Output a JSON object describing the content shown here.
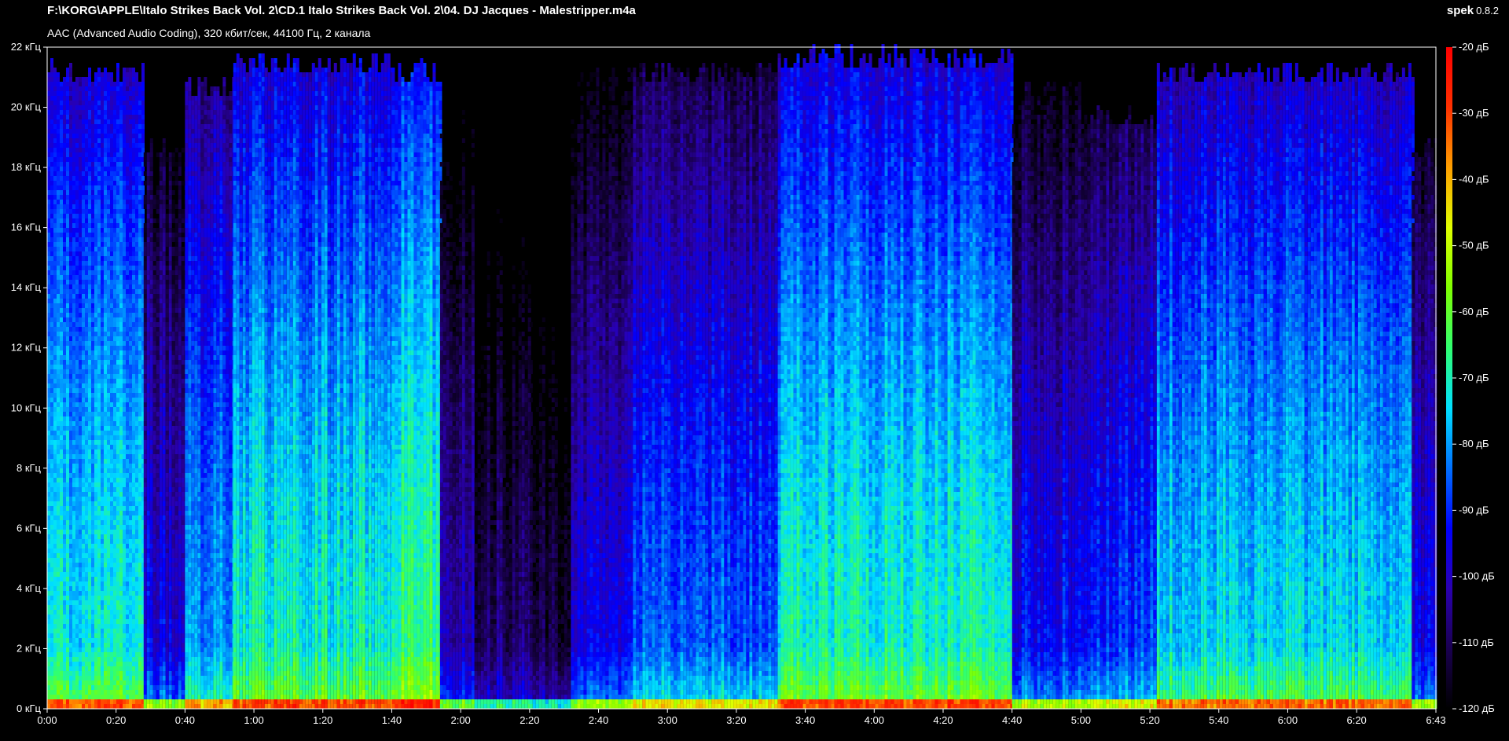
{
  "window": {
    "file_path": "F:\\KORG\\APPLE\\Italo Strikes Back Vol. 2\\CD.1 Italo Strikes Back Vol. 2\\04. DJ Jacques - Malestripper.m4a",
    "stream_info": "AAC (Advanced Audio Coding), 320 кбит/сек, 44100 Гц, 2 канала",
    "app_name": "spek",
    "app_version": "0.8.2"
  },
  "chart_data": {
    "type": "heatmap",
    "title": "",
    "xlabel": "",
    "ylabel": "",
    "x_ticks": [
      "0:00",
      "0:20",
      "0:40",
      "1:00",
      "1:20",
      "1:40",
      "2:00",
      "2:20",
      "2:40",
      "3:00",
      "3:20",
      "3:40",
      "4:00",
      "4:20",
      "4:40",
      "5:00",
      "5:20",
      "5:40",
      "6:00",
      "6:20",
      "6:43"
    ],
    "x_tick_seconds": [
      0,
      20,
      40,
      60,
      80,
      100,
      120,
      140,
      160,
      180,
      200,
      220,
      240,
      260,
      280,
      300,
      320,
      340,
      360,
      380,
      403
    ],
    "xlim_seconds": [
      0,
      403
    ],
    "y_ticks": [
      "0 кГц",
      "2 кГц",
      "4 кГц",
      "6 кГц",
      "8 кГц",
      "10 кГц",
      "12 кГц",
      "14 кГц",
      "16 кГц",
      "18 кГц",
      "20 кГц",
      "22 кГц"
    ],
    "y_tick_khz": [
      0,
      2,
      4,
      6,
      8,
      10,
      12,
      14,
      16,
      18,
      20,
      22
    ],
    "ylim_khz": [
      0,
      22
    ],
    "colorbar": {
      "ticks": [
        "-20 дБ",
        "-30 дБ",
        "-40 дБ",
        "-50 дБ",
        "-60 дБ",
        "-70 дБ",
        "-80 дБ",
        "-90 дБ",
        "-100 дБ",
        "-110 дБ",
        "-120 дБ"
      ],
      "tick_db": [
        -20,
        -30,
        -40,
        -50,
        -60,
        -70,
        -80,
        -90,
        -100,
        -110,
        -120
      ],
      "range_db": [
        -120,
        -20
      ],
      "colors": [
        "#000000",
        "#1a0050",
        "#2a00b0",
        "#0000ff",
        "#0070ff",
        "#00e0ff",
        "#30ff70",
        "#80ff00",
        "#e0ff00",
        "#ffa000",
        "#ff3000",
        "#ff0000"
      ]
    },
    "segments": [
      {
        "start": 0,
        "end": 28,
        "level_db": -72,
        "top_khz": 21.5
      },
      {
        "start": 28,
        "end": 40,
        "level_db": -95,
        "top_khz": 19
      },
      {
        "start": 40,
        "end": 54,
        "level_db": -80,
        "top_khz": 21
      },
      {
        "start": 54,
        "end": 100,
        "level_db": -70,
        "top_khz": 21.8
      },
      {
        "start": 100,
        "end": 114,
        "level_db": -66,
        "top_khz": 21.5
      },
      {
        "start": 114,
        "end": 124,
        "level_db": -100,
        "top_khz": 21
      },
      {
        "start": 124,
        "end": 140,
        "level_db": -108,
        "top_khz": 19
      },
      {
        "start": 140,
        "end": 152,
        "level_db": -112,
        "top_khz": 17
      },
      {
        "start": 152,
        "end": 170,
        "level_db": -95,
        "top_khz": 21.5
      },
      {
        "start": 170,
        "end": 212,
        "level_db": -85,
        "top_khz": 21.5
      },
      {
        "start": 212,
        "end": 280,
        "level_db": -70,
        "top_khz": 22
      },
      {
        "start": 280,
        "end": 300,
        "level_db": -92,
        "top_khz": 21
      },
      {
        "start": 300,
        "end": 322,
        "level_db": -88,
        "top_khz": 20
      },
      {
        "start": 322,
        "end": 396,
        "level_db": -74,
        "top_khz": 21.5
      },
      {
        "start": 396,
        "end": 403,
        "level_db": -95,
        "top_khz": 19
      }
    ]
  }
}
